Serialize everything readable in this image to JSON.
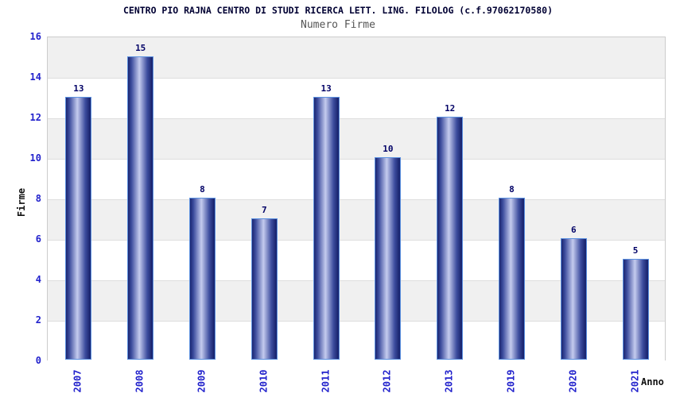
{
  "chart_data": {
    "type": "bar",
    "title": "CENTRO PIO RAJNA CENTRO DI STUDI RICERCA LETT. LING. FILOLOG (c.f.97062170580)",
    "subtitle": "Numero Firme",
    "xlabel": "Anno",
    "ylabel": "Firme",
    "categories": [
      "2007",
      "2008",
      "2009",
      "2010",
      "2011",
      "2012",
      "2013",
      "2019",
      "2020",
      "2021"
    ],
    "values": [
      13,
      15,
      8,
      7,
      13,
      10,
      12,
      8,
      6,
      5
    ],
    "ylim": [
      0,
      16
    ],
    "yticks": [
      0,
      2,
      4,
      6,
      8,
      10,
      12,
      14,
      16
    ],
    "grid": "alternating horizontal bands every 2 units, light gray and white",
    "legend_position": "none",
    "bar_style": "vertical cylinder gradient, dark navy edges with light periwinkle center, light blue outline",
    "value_labels_shown": true
  },
  "style": {
    "title_color": "#000033",
    "subtitle_color": "#555555",
    "axis_tick_color": "#2222cc",
    "value_label_color": "#000066",
    "bar_border": "#5c91e0",
    "bar_dark": "#1b2671",
    "bar_mid": "#3d4d9e",
    "bar_light": "#c4cbee",
    "band_gray": "#f0f0f0",
    "band_white": "#ffffff",
    "gridline": "#dedede",
    "plot_border": "#cccccc"
  }
}
